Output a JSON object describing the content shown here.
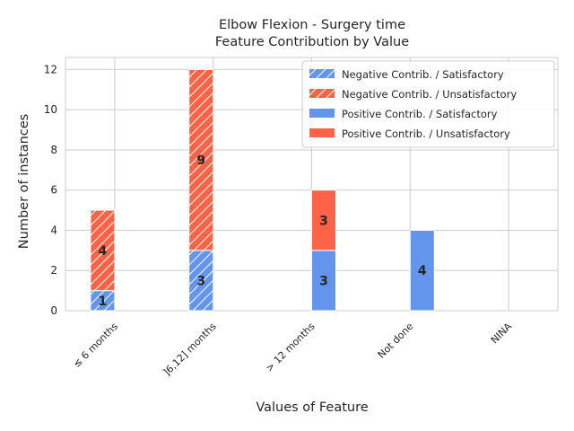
{
  "chart_data": {
    "type": "bar",
    "title": [
      "Elbow Flexion - Surgery time",
      "Feature Contribution by Value"
    ],
    "xlabel": "Values of Feature",
    "ylabel": "Number of instances",
    "categories": [
      "≤ 6 months",
      "]6,12] months",
      "> 12 months",
      "Not done",
      "NINA"
    ],
    "ylim": [
      0,
      12.6
    ],
    "yticks": [
      0,
      2,
      4,
      6,
      8,
      10,
      12
    ],
    "grid": true,
    "legend_position": "top-right",
    "series": [
      {
        "name": "Negative Contrib. / Satisfactory",
        "group": "negative",
        "color": "#6495ED",
        "hatch": true,
        "values": [
          1,
          3,
          0,
          0,
          0
        ]
      },
      {
        "name": "Negative Contrib. / Unsatisfactory",
        "group": "negative",
        "color": "#FF6347",
        "hatch": true,
        "values": [
          4,
          9,
          0,
          0,
          0
        ]
      },
      {
        "name": "Positive Contrib. / Satisfactory",
        "group": "positive",
        "color": "#6495ED",
        "hatch": false,
        "values": [
          0,
          0,
          3,
          4,
          0
        ]
      },
      {
        "name": "Positive Contrib. / Unsatisfactory",
        "group": "positive",
        "color": "#FF6347",
        "hatch": false,
        "values": [
          0,
          0,
          3,
          0,
          0
        ]
      }
    ]
  }
}
